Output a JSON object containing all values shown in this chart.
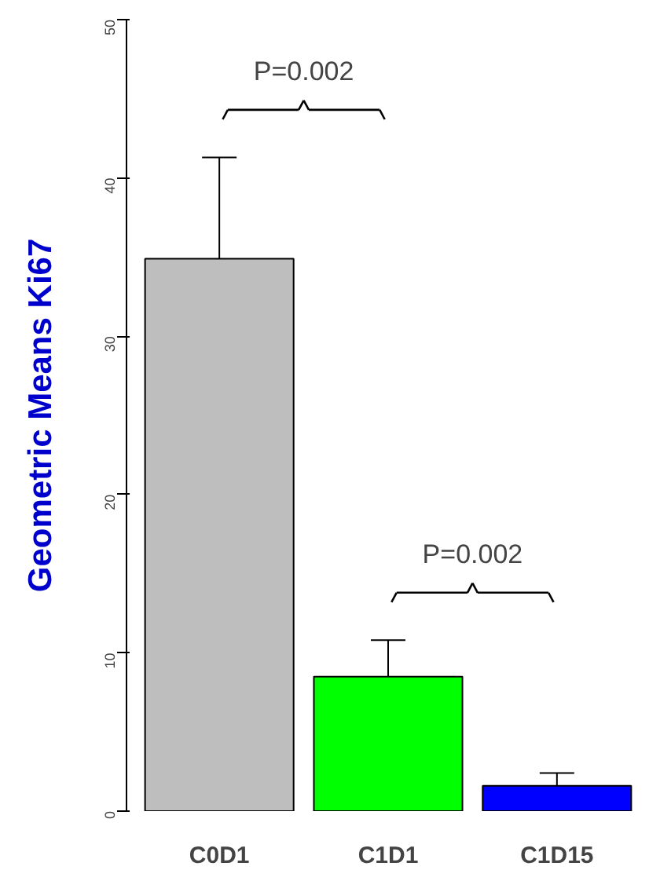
{
  "chart_data": {
    "type": "bar",
    "ylabel": "Geometric Means Ki67",
    "categories": [
      "C0D1",
      "C1D1",
      "C1D15"
    ],
    "values": [
      34.9,
      8.5,
      1.6
    ],
    "colors": [
      "#bebebe",
      "#00ff00",
      "#0000ff"
    ],
    "errors": [
      [
        34.9,
        41.3
      ],
      [
        8.5,
        10.8
      ],
      [
        1.6,
        2.4
      ]
    ],
    "ylim": [
      0,
      50
    ],
    "yticks": [
      0,
      10,
      20,
      30,
      40,
      50
    ],
    "grid": false,
    "annotations": [
      "P=0.002",
      "P=0.002"
    ]
  }
}
